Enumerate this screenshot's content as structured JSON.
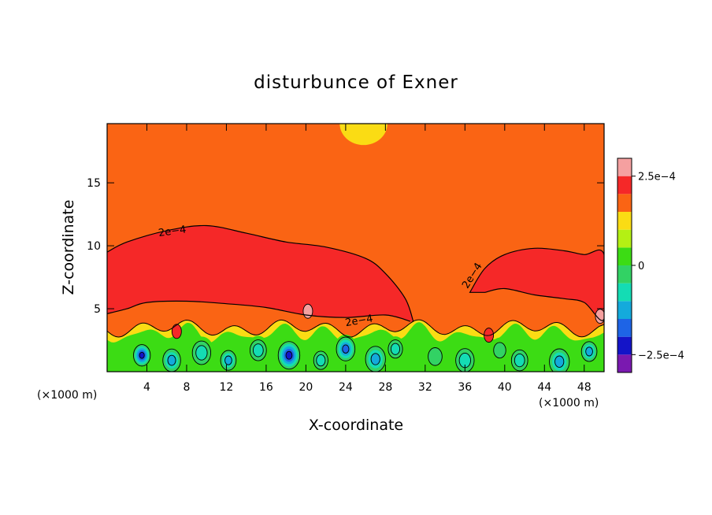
{
  "chart_data": {
    "type": "heatmap",
    "title": "disturbunce of Exner",
    "xlabel": "X-coordinate",
    "ylabel": "Z-coordinate",
    "x_unit_left": "(×1000 m)",
    "x_unit_right": "(×1000 m)",
    "xlim": [
      0,
      50
    ],
    "ylim": [
      0,
      19.7
    ],
    "x_ticks": [
      4,
      8,
      12,
      16,
      20,
      24,
      28,
      32,
      36,
      40,
      44,
      48
    ],
    "y_ticks": [
      5,
      10,
      15
    ],
    "grid": false,
    "colorbar": {
      "placement": "right",
      "min": -0.0003,
      "max": 0.0003,
      "step": 5e-05,
      "levels": [
        -0.0003,
        -0.00025,
        -0.0002,
        -0.00015,
        -0.0001,
        -5e-05,
        0,
        5e-05,
        0.0001,
        0.00015,
        0.0002,
        0.00025
      ],
      "colors": [
        "#7a19b0",
        "#1414c8",
        "#1e64e6",
        "#14aadc",
        "#14dcb4",
        "#32d264",
        "#3cdc14",
        "#b4f014",
        "#fadc14",
        "#fa6414",
        "#f52828",
        "#f5a0a0"
      ],
      "labeled_ticks": [
        {
          "value": 0.00025,
          "label": "2.5e−4"
        },
        {
          "value": 0,
          "label": "0"
        },
        {
          "value": -0.00025,
          "label": "−2.5e−4"
        }
      ]
    },
    "contour_labels": [
      {
        "text": "2e−4",
        "x": 6.6,
        "z": 10.9,
        "angle": -8
      },
      {
        "text": "2e−4",
        "x": 37.0,
        "z": 7.5,
        "angle": -58
      },
      {
        "text": "2e−4",
        "x": 25.4,
        "z": 3.8,
        "angle": -10
      }
    ],
    "fields": {
      "background_level": 0.00015,
      "upper_band": {
        "level": 0.0002,
        "left_lobe_top": [
          [
            0,
            9.5
          ],
          [
            2,
            10.3
          ],
          [
            6,
            11.2
          ],
          [
            10,
            11.6
          ],
          [
            14,
            11.0
          ],
          [
            18,
            10.3
          ],
          [
            22,
            9.9
          ],
          [
            26,
            9.0
          ],
          [
            28,
            7.8
          ],
          [
            30,
            5.8
          ],
          [
            30.8,
            4.0
          ]
        ],
        "left_lobe_bottom": [
          [
            30.5,
            4.0
          ],
          [
            28,
            4.5
          ],
          [
            24,
            4.3
          ],
          [
            20,
            4.5
          ],
          [
            16,
            5.1
          ],
          [
            12,
            5.4
          ],
          [
            8,
            5.6
          ],
          [
            4,
            5.5
          ],
          [
            2,
            5.0
          ],
          [
            0,
            4.6
          ]
        ],
        "right_lobe_top": [
          [
            36.5,
            6.3
          ],
          [
            38,
            8.2
          ],
          [
            40,
            9.3
          ],
          [
            43,
            9.8
          ],
          [
            46,
            9.6
          ],
          [
            48,
            9.3
          ],
          [
            50,
            9.3
          ]
        ],
        "right_lobe_bottom": [
          [
            50,
            4.2
          ],
          [
            48,
            5.5
          ],
          [
            46,
            5.8
          ],
          [
            43,
            6.1
          ],
          [
            40,
            6.6
          ],
          [
            38,
            6.3
          ]
        ]
      },
      "top_cap": {
        "level": 0.0001,
        "x": [
          23.4,
          28.2
        ],
        "z_bottom": 18.0
      },
      "small_features": [
        {
          "x": 20.2,
          "z": 4.8,
          "level": 0.00025
        },
        {
          "x": 49.6,
          "z": 4.4,
          "level": 0.00025
        },
        {
          "x": 7.0,
          "z": 3.2,
          "level": 0.0002
        },
        {
          "x": 38.4,
          "z": 2.9,
          "level": 0.0002
        }
      ],
      "bottom_layer": {
        "z_top": 4.0,
        "level_range": [
          -0.00025,
          0.0001
        ],
        "blobs": [
          {
            "x": 3.5,
            "z": 1.3,
            "level": -0.00025
          },
          {
            "x": 6.5,
            "z": 0.9,
            "level": -0.00015
          },
          {
            "x": 9.5,
            "z": 1.5,
            "level": -0.0001
          },
          {
            "x": 12.2,
            "z": 0.9,
            "level": -0.00015
          },
          {
            "x": 15.2,
            "z": 1.7,
            "level": -0.0001
          },
          {
            "x": 18.3,
            "z": 1.3,
            "level": -0.00025
          },
          {
            "x": 21.5,
            "z": 0.9,
            "level": -0.0001
          },
          {
            "x": 24.0,
            "z": 1.8,
            "level": -0.0002
          },
          {
            "x": 27.0,
            "z": 1.0,
            "level": -0.00015
          },
          {
            "x": 29.0,
            "z": 1.8,
            "level": -0.0001
          },
          {
            "x": 33.0,
            "z": 1.2,
            "level": -5e-05
          },
          {
            "x": 36.0,
            "z": 0.9,
            "level": -0.0001
          },
          {
            "x": 39.5,
            "z": 1.7,
            "level": -5e-05
          },
          {
            "x": 41.5,
            "z": 0.9,
            "level": -0.0001
          },
          {
            "x": 45.5,
            "z": 0.8,
            "level": -0.00015
          },
          {
            "x": 48.5,
            "z": 1.6,
            "level": -0.00015
          }
        ]
      }
    }
  }
}
